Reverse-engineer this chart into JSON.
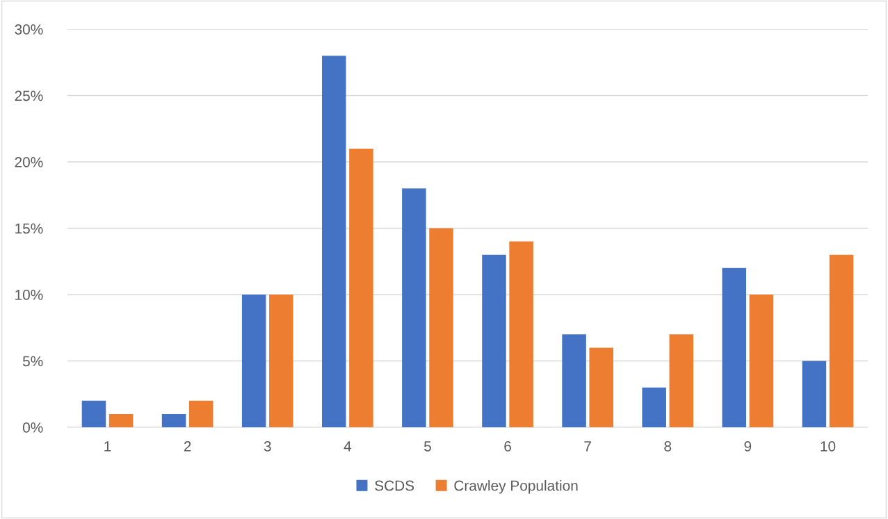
{
  "chart_data": {
    "type": "bar",
    "categories": [
      "1",
      "2",
      "3",
      "4",
      "5",
      "6",
      "7",
      "8",
      "9",
      "10"
    ],
    "series": [
      {
        "name": "SCDS",
        "color": "#4472c4",
        "values": [
          2,
          1,
          10,
          28,
          18,
          13,
          7,
          3,
          12,
          5
        ]
      },
      {
        "name": "Crawley Population",
        "color": "#ed7d31",
        "values": [
          1,
          2,
          10,
          21,
          15,
          14,
          6,
          7,
          10,
          13
        ]
      }
    ],
    "ylim": [
      0,
      30
    ],
    "yticks": [
      {
        "value": 0,
        "label": "0%"
      },
      {
        "value": 5,
        "label": "5%"
      },
      {
        "value": 10,
        "label": "10%"
      },
      {
        "value": 15,
        "label": "15%"
      },
      {
        "value": 20,
        "label": "20%"
      },
      {
        "value": 25,
        "label": "25%"
      },
      {
        "value": 30,
        "label": "30%"
      }
    ],
    "grid": "y",
    "legend": "bottom"
  }
}
